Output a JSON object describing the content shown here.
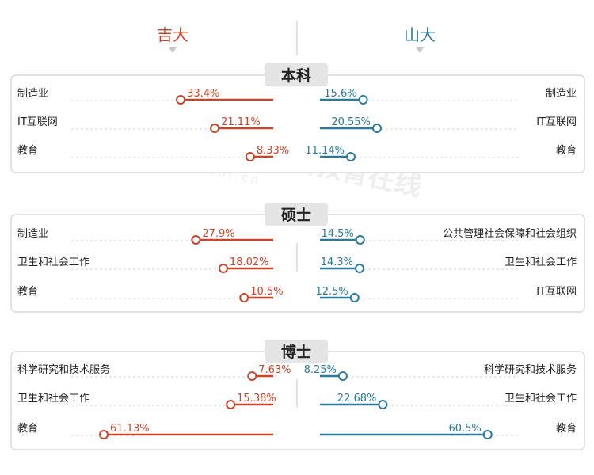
{
  "header": {
    "left_title": "吉大",
    "right_title": "山大"
  },
  "colors": {
    "left": "#c9452a",
    "right": "#2b7a9b"
  },
  "watermark": {
    "text": "中国教育在线",
    "url": "www.eol.cn"
  },
  "chart_data": {
    "type": "bar",
    "sections": [
      {
        "title": "本科",
        "left": {
          "categories": [
            "制造业",
            "IT互联网",
            "教育"
          ],
          "values": [
            33.4,
            21.11,
            8.33
          ],
          "labels": [
            "33.4%",
            "21.11%",
            "8.33%"
          ]
        },
        "right": {
          "categories": [
            "制造业",
            "IT互联网",
            "教育"
          ],
          "values": [
            15.6,
            20.55,
            11.14
          ],
          "labels": [
            "15.6%",
            "20.55%",
            "11.14%"
          ]
        }
      },
      {
        "title": "硕士",
        "left": {
          "categories": [
            "制造业",
            "卫生和社会工作",
            "教育"
          ],
          "values": [
            27.9,
            18.02,
            10.5
          ],
          "labels": [
            "27.9%",
            "18.02%",
            "10.5%"
          ]
        },
        "right": {
          "categories": [
            "公共管理社会保障和社会组织",
            "卫生和社会工作",
            "IT互联网"
          ],
          "values": [
            14.5,
            14.3,
            12.5
          ],
          "labels": [
            "14.5%",
            "14.3%",
            "12.5%"
          ]
        }
      },
      {
        "title": "博士",
        "left": {
          "categories": [
            "科学研究和技术服务",
            "卫生和社会工作",
            "教育"
          ],
          "values": [
            7.63,
            15.38,
            61.13
          ],
          "labels": [
            "7.63%",
            "15.38%",
            "61.13%"
          ]
        },
        "right": {
          "categories": [
            "科学研究和技术服务",
            "卫生和社会工作",
            "教育"
          ],
          "values": [
            8.25,
            22.68,
            60.5
          ],
          "labels": [
            "8.25%",
            "22.68%",
            "60.5%"
          ]
        }
      }
    ]
  }
}
